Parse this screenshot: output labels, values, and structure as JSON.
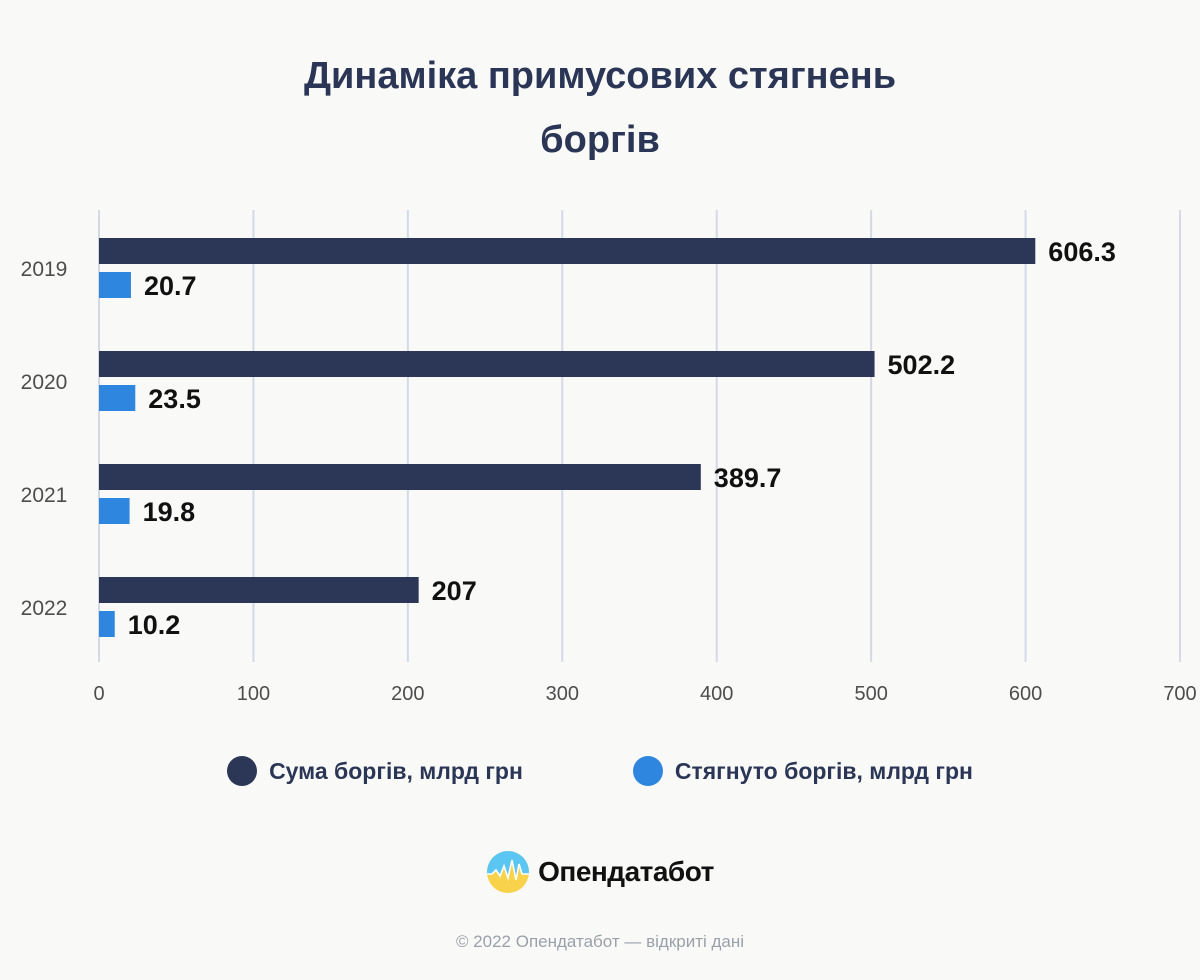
{
  "title": "Динаміка примусових стягнень\nборгів",
  "colors": {
    "debt": "#2c3757",
    "collected": "#2f86df",
    "grid": "#d3d9e6",
    "text": "#2b3656"
  },
  "chart_data": {
    "type": "bar",
    "orientation": "horizontal",
    "title": "Динаміка примусових стягнень боргів",
    "categories": [
      "2019",
      "2020",
      "2021",
      "2022"
    ],
    "series": [
      {
        "name": "Сума боргів, млрд грн",
        "values": [
          606.3,
          502.2,
          389.7,
          207
        ]
      },
      {
        "name": "Стягнуто боргів, млрд грн",
        "values": [
          20.7,
          23.5,
          19.8,
          10.2
        ]
      }
    ],
    "xlim": [
      0,
      700
    ],
    "xticks": [
      0,
      100,
      200,
      300,
      400,
      500,
      600,
      700
    ],
    "grid": true,
    "legend": "bottom",
    "data_labels": true
  },
  "legend": {
    "items": [
      {
        "label": "Сума боргів, млрд грн",
        "color": "#2c3757"
      },
      {
        "label": "Стягнуто боргів, млрд грн",
        "color": "#2f86df"
      }
    ]
  },
  "brand": {
    "name": "Опендатабот",
    "icon": "opendatabot-logo-icon"
  },
  "footer": {
    "copyright": "© 2022 Опендатабот — відкриті дані"
  }
}
